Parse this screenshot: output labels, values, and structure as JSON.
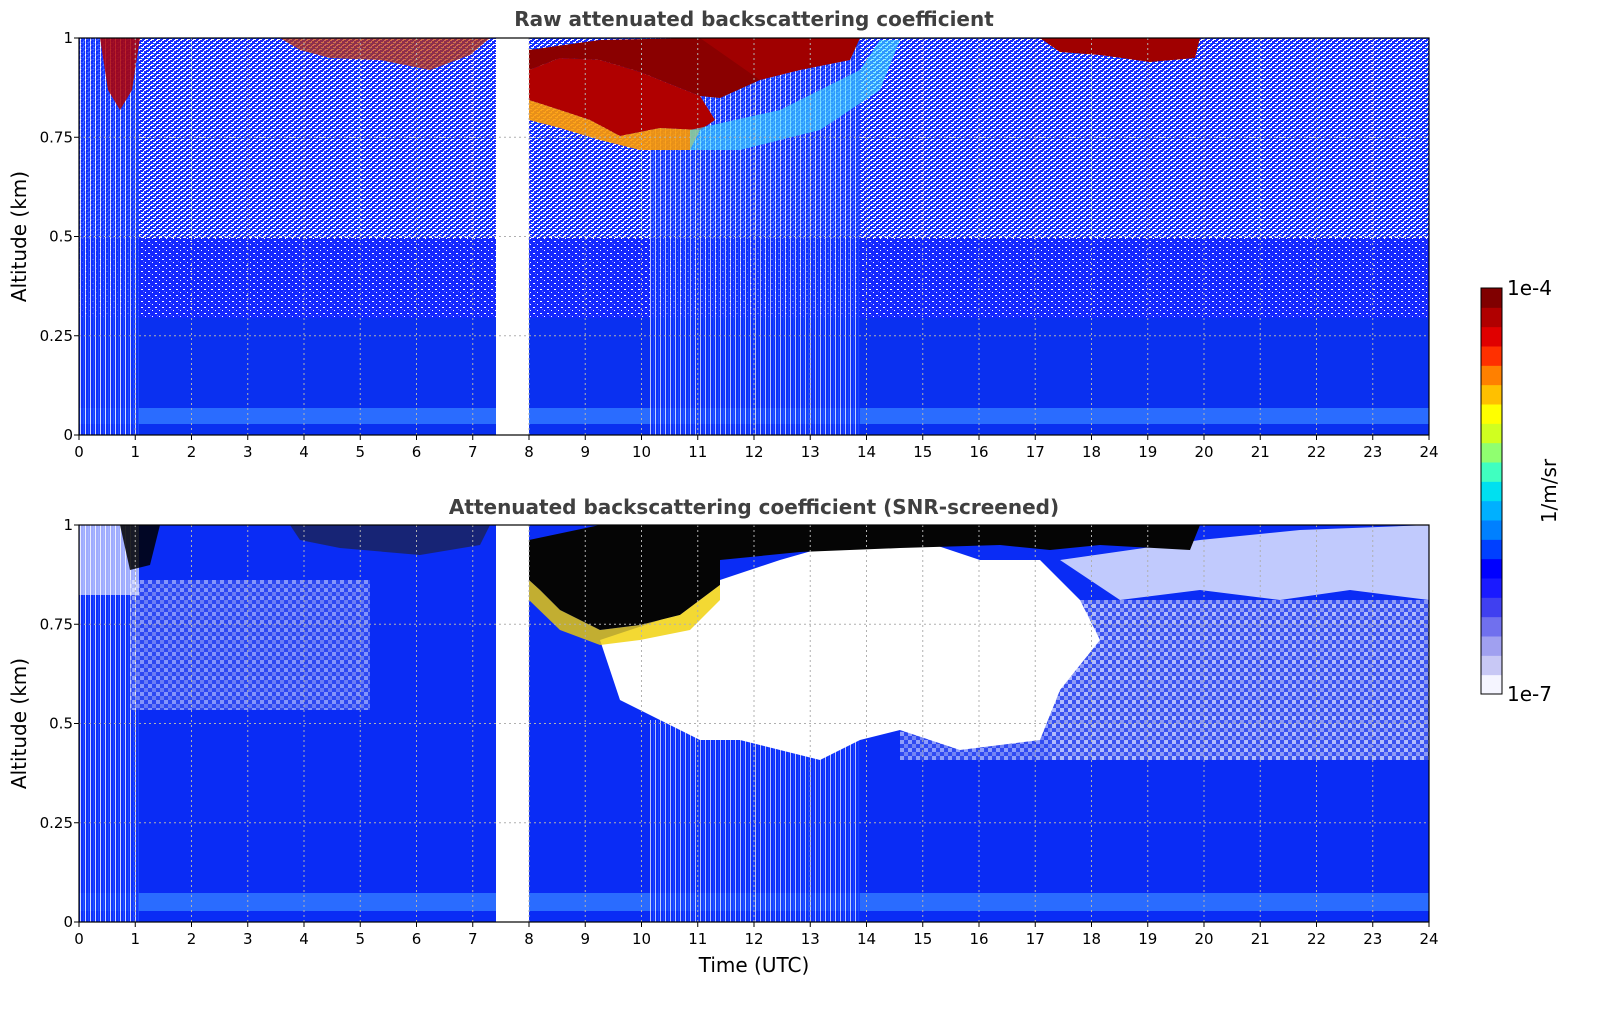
{
  "chart_data": [
    {
      "type": "heatmap",
      "title": "Raw attenuated backscattering coefficient",
      "xlabel": "",
      "ylabel": "Altitude (km)",
      "xlim": [
        0,
        24
      ],
      "ylim": [
        0,
        1
      ],
      "x_ticks": [
        "0",
        "1",
        "2",
        "3",
        "4",
        "5",
        "6",
        "7",
        "8",
        "9",
        "10",
        "11",
        "12",
        "13",
        "14",
        "15",
        "16",
        "17",
        "18",
        "19",
        "20",
        "21",
        "22",
        "23",
        "24"
      ],
      "y_ticks": [
        "0",
        "0.25",
        "0.5",
        "0.75",
        "1"
      ],
      "grid": true,
      "data_gap_utc": [
        7.42,
        8.0
      ],
      "color_scale": "log",
      "features": [
        {
          "time_utc": [
            8.0,
            10.8
          ],
          "altitude_km": [
            0.77,
            1.0
          ],
          "level": "high"
        },
        {
          "time_utc": [
            10.8,
            12.6
          ],
          "altitude_km": [
            0.88,
            1.0
          ],
          "level": "high"
        },
        {
          "time_utc": [
            16.8,
            19.9
          ],
          "altitude_km": [
            0.93,
            1.0
          ],
          "level": "high"
        },
        {
          "time_utc": [
            0.3,
            0.8
          ],
          "altitude_km": [
            0.8,
            1.0
          ],
          "level": "high"
        }
      ]
    },
    {
      "type": "heatmap",
      "title": "Attenuated backscattering coefficient (SNR-screened)",
      "xlabel": "Time (UTC)",
      "ylabel": "Altitude (km)",
      "xlim": [
        0,
        24
      ],
      "ylim": [
        0,
        1
      ],
      "x_ticks": [
        "0",
        "1",
        "2",
        "3",
        "4",
        "5",
        "6",
        "7",
        "8",
        "9",
        "10",
        "11",
        "12",
        "13",
        "14",
        "15",
        "16",
        "17",
        "18",
        "19",
        "20",
        "21",
        "22",
        "23",
        "24"
      ],
      "y_ticks": [
        "0",
        "0.25",
        "0.5",
        "0.75",
        "1"
      ],
      "grid": true,
      "data_gap_utc": [
        7.42,
        8.0
      ],
      "color_scale": "log",
      "screened_regions": [
        {
          "time_utc": [
            9.5,
            14.0
          ],
          "altitude_km": [
            0.42,
            0.85
          ]
        },
        {
          "time_utc": [
            14.0,
            17.5
          ],
          "altitude_km": [
            0.6,
            0.95
          ]
        }
      ],
      "features": [
        {
          "time_utc": [
            8.0,
            10.8
          ],
          "altitude_km": [
            0.72,
            1.0
          ],
          "level": "saturated"
        },
        {
          "time_utc": [
            10.8,
            20.0
          ],
          "altitude_km": [
            0.93,
            1.0
          ],
          "level": "saturated"
        }
      ]
    }
  ],
  "colorbar": {
    "max_label": "1e-4",
    "min_label": "1e-7",
    "unit_label": "1/m/sr",
    "colors": [
      "#f5f5ff",
      "#c8c8f5",
      "#a0a0f0",
      "#7070ee",
      "#4040f0",
      "#1a1aff",
      "#0000ff",
      "#0040ff",
      "#0080ff",
      "#00b0ff",
      "#00e0f0",
      "#40ffc0",
      "#90ff70",
      "#d0ff20",
      "#ffff00",
      "#ffc000",
      "#ff8000",
      "#ff3000",
      "#e00000",
      "#b00000",
      "#800000"
    ]
  }
}
